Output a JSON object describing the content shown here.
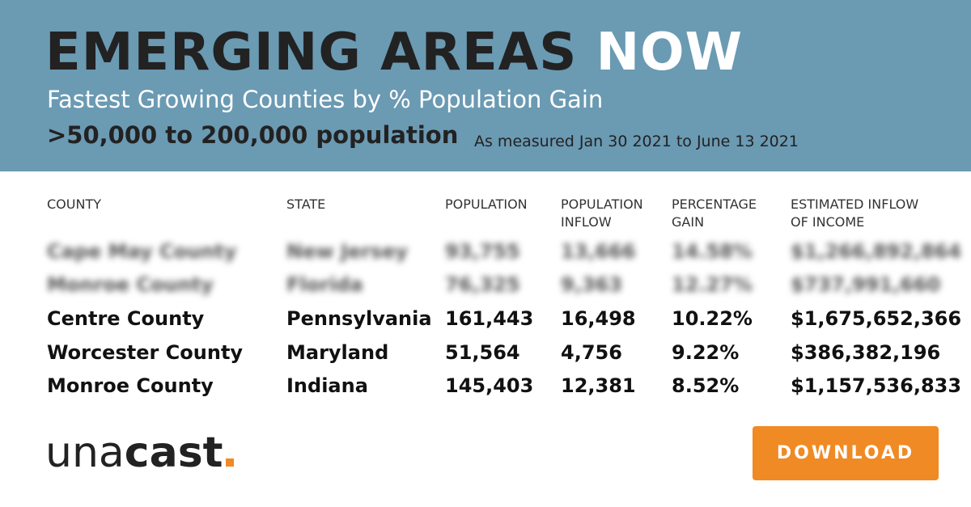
{
  "header": {
    "title_dark": "EMERGING AREAS",
    "title_light": "NOW",
    "subtitle": "Fastest Growing Counties by % Population Gain",
    "range": ">50,000 to 200,000 population",
    "period": "As measured Jan 30 2021 to June 13 2021"
  },
  "table": {
    "columns": [
      "COUNTY",
      "STATE",
      "POPULATION",
      "POPULATION INFLOW",
      "PERCENTAGE GAIN",
      "ESTIMATED INFLOW OF INCOME"
    ],
    "blurred_rows": [
      [
        "Cape May County",
        "New Jersey",
        "93,755",
        "13,666",
        "14.58%",
        "$1,266,892,864"
      ],
      [
        "Monroe County",
        "Florida",
        "76,325",
        "9,363",
        "12.27%",
        "$737,991,660"
      ]
    ],
    "rows": [
      [
        "Centre County",
        "Pennsylvania",
        "161,443",
        "16,498",
        "10.22%",
        "$1,675,652,366"
      ],
      [
        "Worcester County",
        "Maryland",
        "51,564",
        "4,756",
        "9.22%",
        "$386,382,196"
      ],
      [
        "Monroe County",
        "Indiana",
        "145,403",
        "12,381",
        "8.52%",
        "$1,157,536,833"
      ]
    ]
  },
  "logo": {
    "light": "una",
    "bold": "cast"
  },
  "button": "DOWNLOAD"
}
